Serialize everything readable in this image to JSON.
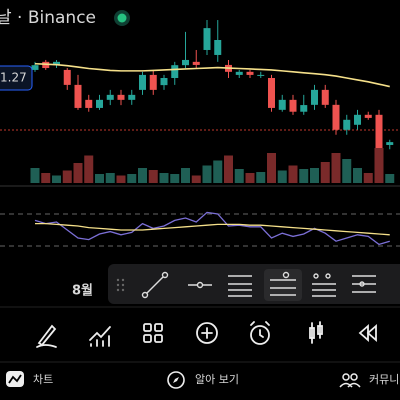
{
  "header": {
    "title": "날 · Binance"
  },
  "chart_data": [
    {
      "type": "candlestick",
      "up_color": "#26a69a",
      "down_color": "#ef5350",
      "ylim": [
        1.15,
        1.35
      ],
      "price_label": 1.27,
      "ma_color": "#f5e08a",
      "open": [
        1.287,
        1.304,
        1.297,
        1.287,
        1.2555,
        1.224,
        1.207,
        1.224,
        1.2345,
        1.224,
        1.245,
        1.2765,
        1.255,
        1.27,
        1.297,
        1.304,
        1.329,
        1.3185,
        1.2975,
        1.2765,
        1.283,
        1.2765,
        1.27,
        1.203,
        1.224,
        1.199,
        1.2135,
        1.245,
        1.2135,
        1.161,
        1.1715,
        1.1925,
        1.1925,
        1.129
      ],
      "close": [
        1.297,
        1.291,
        1.304,
        1.2555,
        1.207,
        1.207,
        1.224,
        1.2345,
        1.224,
        1.2345,
        1.2765,
        1.245,
        1.27,
        1.297,
        1.308,
        1.2975,
        1.375,
        1.35,
        1.283,
        1.283,
        1.2765,
        1.2765,
        1.207,
        1.224,
        1.199,
        1.213,
        1.245,
        1.2135,
        1.161,
        1.182,
        1.1925,
        1.186,
        1.119,
        1.135
      ],
      "high": [
        1.304,
        1.308,
        1.308,
        1.291,
        1.2765,
        1.2345,
        1.2345,
        1.245,
        1.245,
        1.245,
        1.283,
        1.287,
        1.2765,
        1.304,
        1.367,
        1.329,
        1.392,
        1.392,
        1.308,
        1.287,
        1.287,
        1.283,
        1.2765,
        1.2345,
        1.2345,
        1.2345,
        1.2555,
        1.2555,
        1.224,
        1.1925,
        1.203,
        1.199,
        1.203,
        1.14
      ],
      "low": [
        1.283,
        1.287,
        1.291,
        1.245,
        1.203,
        1.199,
        1.203,
        1.213,
        1.213,
        1.2135,
        1.2345,
        1.2345,
        1.245,
        1.2555,
        1.291,
        1.291,
        1.3185,
        1.304,
        1.27,
        1.27,
        1.27,
        1.27,
        1.199,
        1.199,
        1.1925,
        1.1925,
        1.203,
        1.207,
        1.1505,
        1.1505,
        1.161,
        1.182,
        1.1085,
        1.12
      ],
      "ma": [
        1.3,
        1.299,
        1.298,
        1.296,
        1.293,
        1.29,
        1.288,
        1.286,
        1.285,
        1.285,
        1.285,
        1.286,
        1.287,
        1.288,
        1.289,
        1.29,
        1.291,
        1.292,
        1.291,
        1.29,
        1.289,
        1.288,
        1.287,
        1.285,
        1.283,
        1.281,
        1.279,
        1.277,
        1.274,
        1.27,
        1.266,
        1.262,
        1.257,
        1.252
      ]
    },
    {
      "type": "bar",
      "ylim": [
        0,
        100
      ],
      "up_color": "#1f5f55",
      "down_color": "#7a2a2a",
      "values": [
        30,
        20,
        15,
        25,
        40,
        55,
        18,
        20,
        15,
        18,
        30,
        26,
        20,
        18,
        30,
        15,
        35,
        45,
        55,
        28,
        20,
        22,
        60,
        25,
        35,
        28,
        30,
        42,
        60,
        48,
        30,
        20,
        70,
        18
      ]
    },
    {
      "type": "line",
      "ylim": [
        0,
        100
      ],
      "bands": [
        70,
        30
      ],
      "color": "#7b6fd6",
      "ma_color": "#f5e08a",
      "values": [
        62,
        58,
        60,
        50,
        40,
        38,
        45,
        48,
        44,
        47,
        58,
        52,
        55,
        62,
        65,
        60,
        72,
        70,
        55,
        56,
        54,
        54,
        40,
        46,
        42,
        45,
        52,
        46,
        36,
        40,
        44,
        42,
        32,
        36
      ],
      "ma": [
        58,
        58,
        57,
        56,
        55,
        53,
        52,
        51,
        50,
        50,
        50,
        51,
        52,
        53,
        54,
        55,
        56,
        57,
        57,
        57,
        56,
        56,
        55,
        54,
        53,
        52,
        51,
        50,
        49,
        48,
        47,
        46,
        45,
        44
      ]
    }
  ],
  "time_label": "8월",
  "nav": [
    "차트",
    "알아 보기",
    "커뮤니"
  ]
}
